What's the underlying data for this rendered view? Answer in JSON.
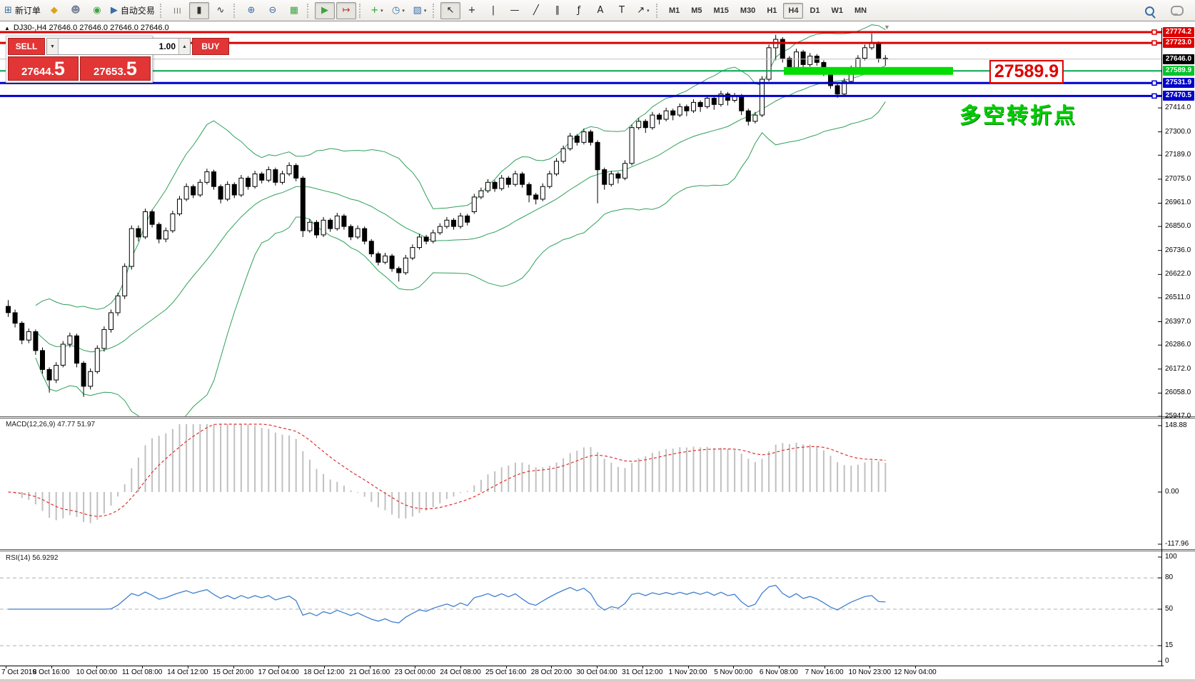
{
  "toolbar": {
    "dropdown_glyph": "▾",
    "items": [
      {
        "name": "new-order-button",
        "icon": "new-order-icon",
        "glyph": "⊞",
        "color": "#3a6ea5",
        "label": "新订单"
      },
      {
        "name": "metaeditor-button",
        "icon": "metaeditor-icon",
        "glyph": "◆",
        "color": "#d9a520"
      },
      {
        "name": "profile-button",
        "icon": "profile-icon",
        "glyph": "☻",
        "color": "#7a8699"
      },
      {
        "name": "signals-button",
        "icon": "signals-icon",
        "glyph": "◉",
        "color": "#3fa33f"
      },
      {
        "name": "autotrading-button",
        "icon": "autotrading-icon",
        "glyph": "▶",
        "color": "#3a6ea5",
        "label": "自动交易"
      },
      {
        "sep": true
      },
      {
        "name": "bar-chart-button",
        "icon": "bar-chart-icon",
        "glyph": "|||",
        "color": "#333333"
      },
      {
        "name": "candlestick-chart-button",
        "icon": "candlestick-icon",
        "glyph": "▮",
        "color": "#333333",
        "active": true
      },
      {
        "name": "line-chart-button",
        "icon": "line-chart-icon",
        "glyph": "∿",
        "color": "#333333"
      },
      {
        "sep": true
      },
      {
        "name": "zoom-in-button",
        "icon": "zoom-in-icon",
        "glyph": "⊕",
        "color": "#3a6ea5"
      },
      {
        "name": "zoom-out-button",
        "icon": "zoom-out-icon",
        "glyph": "⊖",
        "color": "#3a6ea5"
      },
      {
        "name": "tile-windows-button",
        "icon": "tile-windows-icon",
        "glyph": "▦",
        "color": "#3fa33f"
      },
      {
        "sep": true
      },
      {
        "name": "auto-scroll-button",
        "icon": "auto-scroll-icon",
        "glyph": "▶",
        "color": "#3fa33f",
        "active": true
      },
      {
        "name": "chart-shift-button",
        "icon": "chart-shift-icon",
        "glyph": "↦",
        "color": "#c03030",
        "active": true
      },
      {
        "sep": true
      },
      {
        "name": "indicators-button",
        "icon": "indicators-icon",
        "glyph": "+",
        "color": "#2f9e2f",
        "dropdown": true
      },
      {
        "name": "periods-button",
        "icon": "clock-icon",
        "glyph": "◷",
        "color": "#3a6ea5",
        "dropdown": true
      },
      {
        "name": "templates-button",
        "icon": "template-icon",
        "glyph": "▨",
        "color": "#3a6ea5",
        "dropdown": true
      },
      {
        "sep": true
      },
      {
        "name": "cursor-button",
        "icon": "cursor-icon",
        "glyph": "↖",
        "color": "#222222",
        "active": true
      },
      {
        "name": "crosshair-button",
        "icon": "crosshair-icon",
        "glyph": "+",
        "color": "#222222"
      },
      {
        "name": "vertical-line-button",
        "icon": "vertical-line-icon",
        "glyph": "|",
        "color": "#222222"
      },
      {
        "name": "horizontal-line-button",
        "icon": "horizontal-line-icon",
        "glyph": "—",
        "color": "#222222"
      },
      {
        "name": "trendline-button",
        "icon": "trendline-icon",
        "glyph": "╱",
        "color": "#222222"
      },
      {
        "name": "channel-button",
        "icon": "channel-icon",
        "glyph": "∥",
        "color": "#222222"
      },
      {
        "name": "fibonacci-button",
        "icon": "fibonacci-icon",
        "glyph": "ƒ",
        "color": "#222222"
      },
      {
        "name": "text-button",
        "icon": "text-icon",
        "glyph": "A",
        "color": "#222222"
      },
      {
        "name": "label-button",
        "icon": "label-icon",
        "glyph": "T",
        "color": "#222222"
      },
      {
        "name": "arrows-button",
        "icon": "arrows-icon",
        "glyph": "↗",
        "color": "#222222",
        "dropdown": true
      },
      {
        "sep": true
      }
    ],
    "timeframes": {
      "items": [
        "M1",
        "M5",
        "M15",
        "M30",
        "H1",
        "H4",
        "D1",
        "W1",
        "MN"
      ],
      "active": "H4"
    }
  },
  "chart": {
    "title": "DJ30-,H4  27646.0 27646.0 27646.0 27646.0",
    "collapse_glyph": "▲",
    "shift_marker_glyph": "▼"
  },
  "trade_panel": {
    "sell_label": "SELL",
    "buy_label": "BUY",
    "volume": "1.00",
    "decrease_glyph": "▼",
    "increase_glyph": "▲",
    "sell_price_main": "27644.",
    "sell_price_big": "5",
    "buy_price_main": "27653.",
    "buy_price_big": "5"
  },
  "annotations": {
    "big_price_label": "27589.9",
    "turning_point_text": "多空转折点"
  },
  "indicators": {
    "macd_label": "MACD(12,26,9) 47.77 51.97",
    "rsi_label": "RSI(14) 56.9292"
  },
  "chart_data": {
    "type": "candlestick",
    "symbol": "DJ30-",
    "timeframe": "H4",
    "price_ticks": [
      "27414.0",
      "27300.0",
      "27189.0",
      "27075.0",
      "26961.0",
      "26850.0",
      "26736.0",
      "26622.0",
      "26511.0",
      "26397.0",
      "26286.0",
      "26172.0",
      "26058.0",
      "25947.0"
    ],
    "date_labels": [
      "7 Oct 2019",
      "8 Oct 16:00",
      "10 Oct 00:00",
      "11 Oct 08:00",
      "14 Oct 12:00",
      "15 Oct 20:00",
      "17 Oct 04:00",
      "18 Oct 12:00",
      "21 Oct 16:00",
      "23 Oct 00:00",
      "24 Oct 08:00",
      "25 Oct 16:00",
      "28 Oct 20:00",
      "30 Oct 04:00",
      "31 Oct 12:00",
      "1 Nov 20:00",
      "5 Nov 00:00",
      "6 Nov 08:00",
      "7 Nov 16:00",
      "10 Nov 23:00",
      "12 Nov 04:00"
    ],
    "levels": [
      {
        "label": "27774.2",
        "price": 27774.2,
        "color": "#dd0000",
        "width": 3,
        "label_bg": "#dd0000",
        "marker": true
      },
      {
        "label": "27723.0",
        "price": 27723.0,
        "color": "#dd0000",
        "width": 3,
        "label_bg": "#dd0000",
        "marker": true
      },
      {
        "label": "27646.0",
        "price": 27646.0,
        "color": "#c0c0c0",
        "width": 1,
        "label_bg": "#000000",
        "marker": false
      },
      {
        "label": "27589.9",
        "price": 27589.9,
        "color": "#00a94f",
        "width": 2,
        "label_bg": "#00c42a",
        "marker": false
      },
      {
        "label": "27531.9",
        "price": 27531.9,
        "color": "#0000cc",
        "width": 3,
        "label_bg": "#0000cc",
        "marker": true
      },
      {
        "label": "27470.5",
        "price": 27470.5,
        "color": "#0000cc",
        "width": 3,
        "label_bg": "#0000cc",
        "marker": true
      }
    ],
    "highlight_bar": {
      "price": 27589.9,
      "color": "#00dd00"
    },
    "bollinger": {
      "period": 20,
      "deviation": 2,
      "color": "#2fa05a"
    },
    "macd": {
      "params": [
        12,
        26,
        9
      ],
      "current_main": 47.77,
      "current_signal": 51.97,
      "ticks": [
        "148.88",
        "0.00",
        "-117.96"
      ],
      "tick_values": [
        148.88,
        0,
        -117.96
      ],
      "histogram_color": "#c0c0c0",
      "signal_color": "#e03030"
    },
    "rsi": {
      "period": 14,
      "current": 56.9292,
      "ticks": [
        "100",
        "80",
        "50",
        "15",
        "0"
      ],
      "tick_values": [
        100,
        80,
        50,
        15,
        0
      ],
      "levels": [
        80,
        50,
        15
      ],
      "color": "#3f7fce"
    },
    "candles": [
      [
        26470,
        26500,
        26420,
        26440
      ],
      [
        26440,
        26455,
        26370,
        26390
      ],
      [
        26390,
        26400,
        26290,
        26310
      ],
      [
        26310,
        26365,
        26295,
        26350
      ],
      [
        26350,
        26360,
        26240,
        26260
      ],
      [
        26260,
        26275,
        26150,
        26170
      ],
      [
        26170,
        26180,
        26060,
        26120
      ],
      [
        26120,
        26205,
        26105,
        26190
      ],
      [
        26190,
        26305,
        26180,
        26290
      ],
      [
        26290,
        26345,
        26275,
        26330
      ],
      [
        26330,
        26340,
        26180,
        26200
      ],
      [
        26200,
        26210,
        26040,
        26090
      ],
      [
        26090,
        26175,
        26075,
        26160
      ],
      [
        26160,
        26285,
        26150,
        26270
      ],
      [
        26270,
        26375,
        26255,
        26360
      ],
      [
        26360,
        26455,
        26345,
        26440
      ],
      [
        26440,
        26535,
        26425,
        26520
      ],
      [
        26520,
        26675,
        26505,
        26660
      ],
      [
        26660,
        26855,
        26645,
        26840
      ],
      [
        26840,
        26855,
        26780,
        26800
      ],
      [
        26800,
        26935,
        26790,
        26920
      ],
      [
        26920,
        26930,
        26845,
        26860
      ],
      [
        26860,
        26870,
        26770,
        26790
      ],
      [
        26790,
        26845,
        26775,
        26830
      ],
      [
        26830,
        26925,
        26820,
        26910
      ],
      [
        26910,
        26995,
        26900,
        26980
      ],
      [
        26980,
        27055,
        26970,
        27040
      ],
      [
        27040,
        27050,
        26985,
        27000
      ],
      [
        27000,
        27075,
        26990,
        27060
      ],
      [
        27060,
        27125,
        27050,
        27110
      ],
      [
        27110,
        27120,
        27025,
        27040
      ],
      [
        27040,
        27050,
        26960,
        26980
      ],
      [
        26980,
        27065,
        26970,
        27050
      ],
      [
        27050,
        27060,
        26985,
        27000
      ],
      [
        27000,
        27095,
        26990,
        27080
      ],
      [
        27080,
        27090,
        27025,
        27040
      ],
      [
        27040,
        27115,
        27030,
        27100
      ],
      [
        27100,
        27110,
        27055,
        27070
      ],
      [
        27070,
        27135,
        27060,
        27120
      ],
      [
        27120,
        27130,
        27045,
        27060
      ],
      [
        27060,
        27115,
        27050,
        27100
      ],
      [
        27100,
        27155,
        27090,
        27140
      ],
      [
        27140,
        27150,
        27065,
        27080
      ],
      [
        27080,
        27090,
        26800,
        26830
      ],
      [
        26830,
        26885,
        26820,
        26870
      ],
      [
        26870,
        26880,
        26795,
        26810
      ],
      [
        26810,
        26895,
        26800,
        26880
      ],
      [
        26880,
        26890,
        26825,
        26840
      ],
      [
        26840,
        26915,
        26830,
        26900
      ],
      [
        26900,
        26910,
        26835,
        26850
      ],
      [
        26850,
        26860,
        26785,
        26800
      ],
      [
        26800,
        26855,
        26790,
        26840
      ],
      [
        26840,
        26850,
        26765,
        26780
      ],
      [
        26780,
        26790,
        26705,
        26720
      ],
      [
        26720,
        26730,
        26665,
        26680
      ],
      [
        26680,
        26725,
        26670,
        26710
      ],
      [
        26710,
        26720,
        26635,
        26650
      ],
      [
        26650,
        26660,
        26588,
        26630
      ],
      [
        26630,
        26715,
        26620,
        26700
      ],
      [
        26700,
        26765,
        26690,
        26750
      ],
      [
        26750,
        26815,
        26740,
        26800
      ],
      [
        26800,
        26810,
        26765,
        26780
      ],
      [
        26780,
        26835,
        26770,
        26820
      ],
      [
        26820,
        26865,
        26810,
        26850
      ],
      [
        26850,
        26895,
        26840,
        26880
      ],
      [
        26880,
        26890,
        26835,
        26850
      ],
      [
        26850,
        26915,
        26840,
        26900
      ],
      [
        26900,
        26910,
        26855,
        26870
      ],
      [
        26920,
        27005,
        26910,
        26990
      ],
      [
        26990,
        27035,
        26980,
        27020
      ],
      [
        27020,
        27075,
        27010,
        27060
      ],
      [
        27060,
        27070,
        27015,
        27030
      ],
      [
        27030,
        27095,
        27020,
        27080
      ],
      [
        27080,
        27090,
        27035,
        27050
      ],
      [
        27050,
        27115,
        27040,
        27100
      ],
      [
        27100,
        27110,
        27035,
        27050
      ],
      [
        27050,
        27060,
        26965,
        27000
      ],
      [
        27000,
        27010,
        26955,
        26980
      ],
      [
        26980,
        27055,
        26970,
        27040
      ],
      [
        27040,
        27115,
        27030,
        27100
      ],
      [
        27100,
        27175,
        27090,
        27160
      ],
      [
        27160,
        27235,
        27150,
        27220
      ],
      [
        27220,
        27295,
        27210,
        27280
      ],
      [
        27280,
        27290,
        27235,
        27250
      ],
      [
        27250,
        27315,
        27240,
        27300
      ],
      [
        27300,
        27310,
        27235,
        27250
      ],
      [
        27250,
        27260,
        26960,
        27120
      ],
      [
        27120,
        27130,
        27025,
        27050
      ],
      [
        27050,
        27115,
        27040,
        27100
      ],
      [
        27100,
        27110,
        27055,
        27080
      ],
      [
        27080,
        27165,
        27070,
        27150
      ],
      [
        27150,
        27335,
        27140,
        27320
      ],
      [
        27320,
        27365,
        27310,
        27350
      ],
      [
        27350,
        27360,
        27295,
        27320
      ],
      [
        27320,
        27395,
        27310,
        27380
      ],
      [
        27380,
        27390,
        27335,
        27360
      ],
      [
        27360,
        27415,
        27350,
        27400
      ],
      [
        27400,
        27410,
        27355,
        27380
      ],
      [
        27380,
        27435,
        27370,
        27420
      ],
      [
        27420,
        27430,
        27375,
        27400
      ],
      [
        27400,
        27455,
        27390,
        27440
      ],
      [
        27440,
        27450,
        27395,
        27420
      ],
      [
        27420,
        27475,
        27410,
        27460
      ],
      [
        27460,
        27470,
        27405,
        27430
      ],
      [
        27430,
        27495,
        27420,
        27480
      ],
      [
        27480,
        27490,
        27425,
        27450
      ],
      [
        27450,
        27485,
        27440,
        27470
      ],
      [
        27470,
        27480,
        27380,
        27400
      ],
      [
        27400,
        27410,
        27330,
        27350
      ],
      [
        27350,
        27395,
        27340,
        27380
      ],
      [
        27380,
        27565,
        27370,
        27550
      ],
      [
        27550,
        27715,
        27540,
        27700
      ],
      [
        27700,
        27762,
        27640,
        27740
      ],
      [
        27740,
        27750,
        27630,
        27650
      ],
      [
        27650,
        27660,
        27575,
        27600
      ],
      [
        27600,
        27695,
        27590,
        27680
      ],
      [
        27680,
        27690,
        27605,
        27620
      ],
      [
        27620,
        27675,
        27610,
        27660
      ],
      [
        27660,
        27670,
        27615,
        27630
      ],
      [
        27630,
        27640,
        27565,
        27580
      ],
      [
        27580,
        27590,
        27505,
        27520
      ],
      [
        27520,
        27530,
        27462,
        27480
      ],
      [
        27480,
        27555,
        27470,
        27540
      ],
      [
        27540,
        27615,
        27530,
        27600
      ],
      [
        27600,
        27665,
        27590,
        27650
      ],
      [
        27650,
        27715,
        27640,
        27700
      ],
      [
        27700,
        27768,
        27690,
        27720
      ],
      [
        27720,
        27730,
        27630,
        27650
      ],
      [
        27650,
        27665,
        27615,
        27646
      ]
    ]
  }
}
